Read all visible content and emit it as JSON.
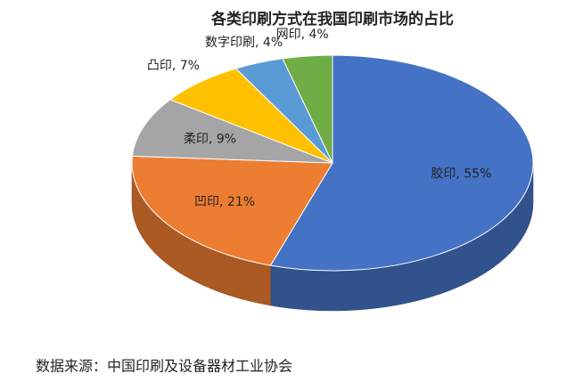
{
  "chart_data": {
    "type": "pie",
    "title": "各类印刷方式在我国印刷市场的占比",
    "values": [
      55,
      21,
      9,
      7,
      4,
      4
    ],
    "value_labels": [
      "胶印, 55%",
      "凹印, 21%",
      "柔印, 9%",
      "凸印, 7%",
      "数字印刷, 4%",
      "网印, 4%"
    ],
    "colors": [
      "#4472c4",
      "#ed7d31",
      "#a5a5a5",
      "#ffc000",
      "#5b9bd5",
      "#70ad47"
    ],
    "source": "数据来源：中国印刷及设备器材工业协会"
  }
}
